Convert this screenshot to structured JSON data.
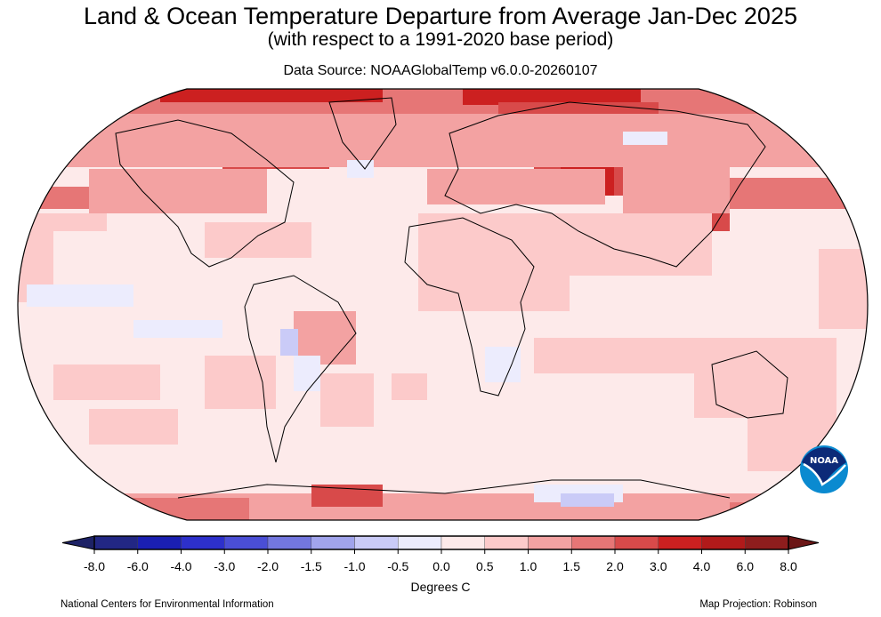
{
  "header": {
    "title": "Land & Ocean Temperature Departure from Average Jan-Dec 2025",
    "subtitle": "(with respect to a 1991-2020 base period)",
    "source": "Data Source: NOAAGlobalTemp v6.0.0-20260107"
  },
  "map": {
    "projection_label": "Map Projection: Robinson",
    "background_anomaly_color": "#fdeaea",
    "logo_text": "NOAA"
  },
  "colorbar": {
    "units_label": "Degrees C",
    "ticks": [
      "-8.0",
      "-6.0",
      "-4.0",
      "-3.0",
      "-2.0",
      "-1.5",
      "-1.0",
      "-0.5",
      "0.0",
      "0.5",
      "1.0",
      "1.5",
      "2.0",
      "3.0",
      "4.0",
      "6.0",
      "8.0"
    ],
    "colors": [
      "#222784",
      "#1a1fb2",
      "#2d30cc",
      "#4a4ed6",
      "#7377df",
      "#a1a4ec",
      "#cacbf7",
      "#ececfd",
      "#fdeaea",
      "#fccaca",
      "#f3a2a2",
      "#e67676",
      "#d84a4a",
      "#cc2020",
      "#b11a1a",
      "#8e1d1d"
    ],
    "under_color": "#1d2266",
    "over_color": "#6b1616"
  },
  "footer": {
    "credit": "National Centers for Environmental Information"
  }
}
